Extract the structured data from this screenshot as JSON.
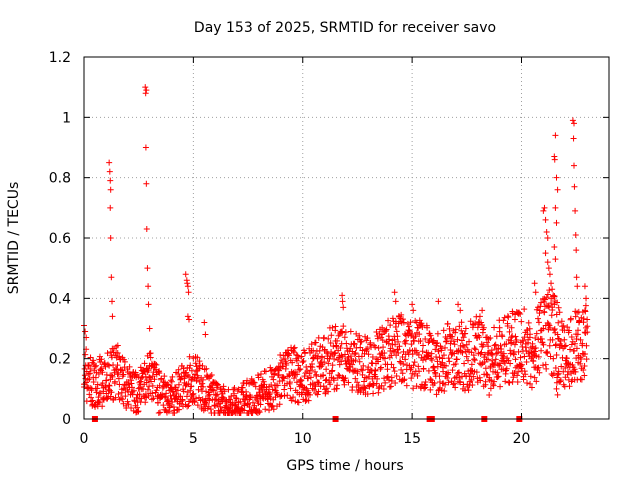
{
  "chart_data": {
    "type": "scatter",
    "title": "Day 153 of 2025, SRMTID for receiver savo",
    "xlabel": "GPS time / hours",
    "ylabel": "SRMTID / TECUs",
    "xlim": [
      0,
      24
    ],
    "ylim": [
      0,
      1.2
    ],
    "xticks": [
      0,
      5,
      10,
      15,
      20
    ],
    "xtick_labels": [
      "0",
      "5",
      "10",
      "15",
      "20"
    ],
    "yticks": [
      0,
      0.2,
      0.4,
      0.6,
      0.8,
      1.0,
      1.2
    ],
    "ytick_labels": [
      "0",
      "0.2",
      "0.4",
      "0.6",
      "0.8",
      "1",
      "1.2"
    ],
    "grid": true,
    "marker": "+",
    "color": "#ff0000",
    "gap_markers_x": [
      0.5,
      11.5,
      15.8,
      15.9,
      18.3,
      19.9
    ],
    "trend": [
      [
        0.0,
        0.15
      ],
      [
        0.5,
        0.12
      ],
      [
        1.0,
        0.13
      ],
      [
        1.5,
        0.16
      ],
      [
        2.0,
        0.1
      ],
      [
        2.5,
        0.09
      ],
      [
        3.0,
        0.14
      ],
      [
        3.5,
        0.08
      ],
      [
        4.0,
        0.07
      ],
      [
        4.5,
        0.11
      ],
      [
        5.0,
        0.14
      ],
      [
        5.5,
        0.1
      ],
      [
        6.0,
        0.07
      ],
      [
        6.5,
        0.05
      ],
      [
        7.0,
        0.05
      ],
      [
        7.5,
        0.07
      ],
      [
        8.0,
        0.08
      ],
      [
        8.5,
        0.1
      ],
      [
        9.0,
        0.13
      ],
      [
        9.5,
        0.15
      ],
      [
        10.0,
        0.14
      ],
      [
        10.5,
        0.16
      ],
      [
        11.0,
        0.19
      ],
      [
        11.5,
        0.2
      ],
      [
        12.0,
        0.21
      ],
      [
        12.5,
        0.18
      ],
      [
        13.0,
        0.17
      ],
      [
        13.5,
        0.19
      ],
      [
        14.0,
        0.22
      ],
      [
        14.5,
        0.23
      ],
      [
        15.0,
        0.21
      ],
      [
        15.5,
        0.22
      ],
      [
        16.0,
        0.18
      ],
      [
        16.5,
        0.2
      ],
      [
        17.0,
        0.22
      ],
      [
        17.5,
        0.2
      ],
      [
        18.0,
        0.23
      ],
      [
        18.5,
        0.18
      ],
      [
        19.0,
        0.22
      ],
      [
        19.5,
        0.24
      ],
      [
        20.0,
        0.25
      ],
      [
        20.5,
        0.22
      ],
      [
        21.0,
        0.3
      ],
      [
        21.5,
        0.28
      ],
      [
        22.0,
        0.2
      ],
      [
        22.5,
        0.24
      ],
      [
        23.0,
        0.28
      ]
    ],
    "outliers": [
      [
        0.0,
        0.31
      ],
      [
        0.05,
        0.29
      ],
      [
        0.1,
        0.27
      ],
      [
        1.15,
        0.85
      ],
      [
        1.18,
        0.82
      ],
      [
        1.2,
        0.79
      ],
      [
        1.22,
        0.76
      ],
      [
        1.2,
        0.7
      ],
      [
        1.22,
        0.6
      ],
      [
        1.25,
        0.47
      ],
      [
        1.28,
        0.39
      ],
      [
        1.3,
        0.34
      ],
      [
        2.8,
        1.1
      ],
      [
        2.82,
        1.08
      ],
      [
        2.85,
        1.09
      ],
      [
        2.83,
        0.9
      ],
      [
        2.85,
        0.78
      ],
      [
        2.87,
        0.63
      ],
      [
        2.9,
        0.5
      ],
      [
        2.93,
        0.44
      ],
      [
        2.95,
        0.38
      ],
      [
        3.0,
        0.3
      ],
      [
        4.65,
        0.48
      ],
      [
        4.7,
        0.46
      ],
      [
        4.72,
        0.45
      ],
      [
        4.75,
        0.44
      ],
      [
        4.78,
        0.42
      ],
      [
        4.75,
        0.34
      ],
      [
        4.8,
        0.33
      ],
      [
        5.5,
        0.32
      ],
      [
        5.55,
        0.28
      ],
      [
        11.8,
        0.41
      ],
      [
        11.82,
        0.39
      ],
      [
        11.85,
        0.37
      ],
      [
        14.2,
        0.42
      ],
      [
        14.25,
        0.39
      ],
      [
        15.0,
        0.38
      ],
      [
        15.05,
        0.36
      ],
      [
        16.2,
        0.39
      ],
      [
        17.1,
        0.38
      ],
      [
        17.2,
        0.36
      ],
      [
        18.1,
        0.34
      ],
      [
        18.2,
        0.36
      ],
      [
        19.6,
        0.35
      ],
      [
        19.7,
        0.33
      ],
      [
        20.6,
        0.45
      ],
      [
        20.65,
        0.42
      ],
      [
        21.0,
        0.69
      ],
      [
        21.05,
        0.7
      ],
      [
        21.1,
        0.66
      ],
      [
        21.15,
        0.62
      ],
      [
        21.2,
        0.6
      ],
      [
        21.1,
        0.55
      ],
      [
        21.2,
        0.52
      ],
      [
        21.25,
        0.5
      ],
      [
        21.3,
        0.48
      ],
      [
        21.35,
        0.45
      ],
      [
        21.4,
        0.43
      ],
      [
        21.5,
        0.87
      ],
      [
        21.52,
        0.86
      ],
      [
        21.55,
        0.94
      ],
      [
        21.6,
        0.8
      ],
      [
        21.65,
        0.76
      ],
      [
        21.55,
        0.7
      ],
      [
        21.6,
        0.65
      ],
      [
        21.5,
        0.57
      ],
      [
        21.55,
        0.53
      ],
      [
        21.45,
        0.41
      ],
      [
        21.5,
        0.38
      ],
      [
        21.6,
        0.1
      ],
      [
        21.65,
        0.08
      ],
      [
        21.62,
        0.12
      ],
      [
        21.7,
        0.15
      ],
      [
        22.35,
        0.99
      ],
      [
        22.4,
        0.98
      ],
      [
        22.38,
        0.93
      ],
      [
        22.4,
        0.84
      ],
      [
        22.42,
        0.77
      ],
      [
        22.45,
        0.69
      ],
      [
        22.48,
        0.61
      ],
      [
        22.5,
        0.56
      ],
      [
        22.52,
        0.47
      ],
      [
        22.55,
        0.44
      ],
      [
        22.9,
        0.44
      ],
      [
        22.95,
        0.4
      ],
      [
        22.9,
        0.36
      ],
      [
        23.0,
        0.33
      ]
    ]
  }
}
